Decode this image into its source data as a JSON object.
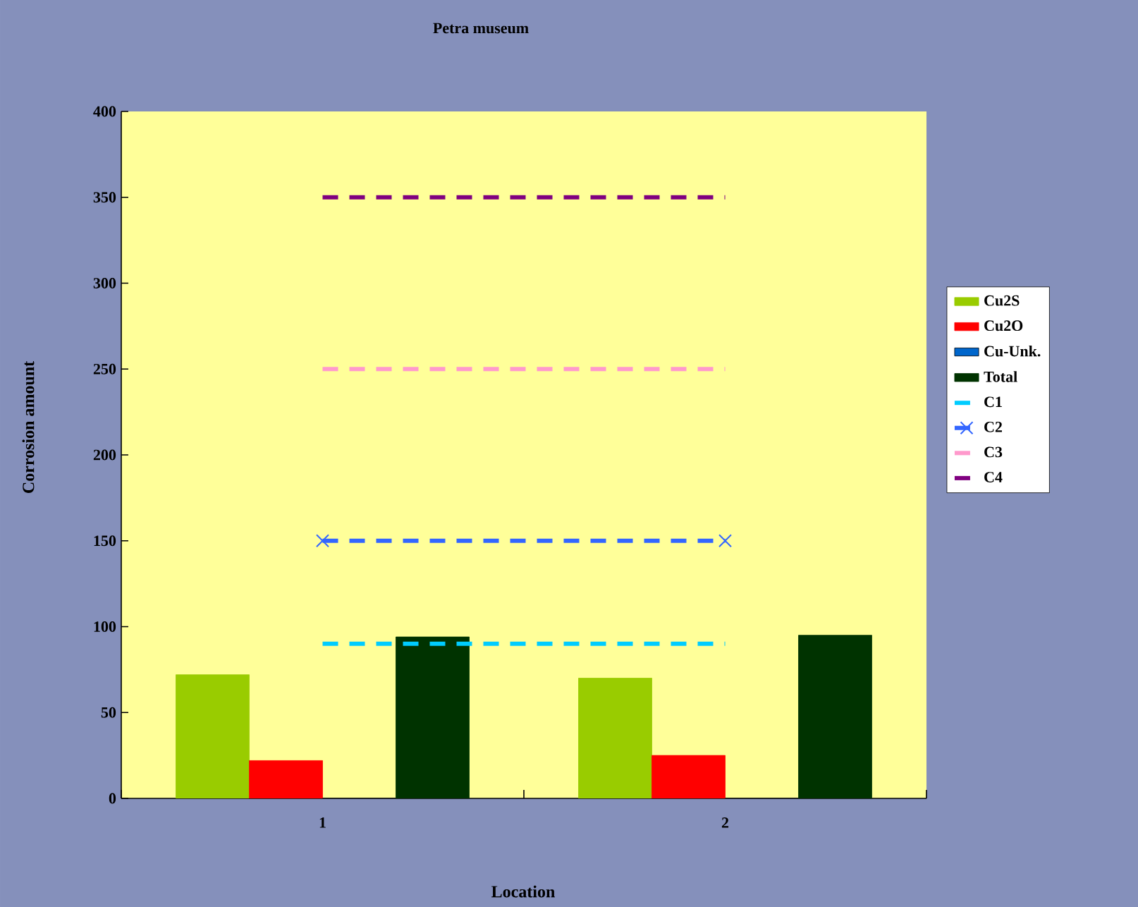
{
  "chart_data": {
    "type": "bar",
    "title": "Petra museum",
    "xlabel": "Location",
    "ylabel": "Corrosion amount",
    "categories": [
      "1",
      "2"
    ],
    "ylim": [
      0,
      400
    ],
    "yticks": [
      0,
      50,
      100,
      150,
      200,
      250,
      300,
      350,
      400
    ],
    "legend": "right",
    "series": [
      {
        "name": "Cu2S",
        "color": "#99cc00",
        "values": [
          72,
          70
        ]
      },
      {
        "name": "Cu2O",
        "color": "#ff0000",
        "values": [
          22,
          25
        ]
      },
      {
        "name": "Cu-Unk.",
        "color": "#0066cc",
        "values": [
          0,
          0
        ]
      },
      {
        "name": "Total",
        "color": "#003300",
        "values": [
          94,
          95
        ]
      },
      {
        "name": "C1",
        "type": "line",
        "color": "#00ccff",
        "values": [
          90,
          90
        ],
        "line_style": "dashed",
        "marker": "none"
      },
      {
        "name": "C2",
        "type": "line",
        "color": "#3366ff",
        "values": [
          150,
          150
        ],
        "line_style": "dashed",
        "marker": "cross"
      },
      {
        "name": "C3",
        "type": "line",
        "color": "#ff99cc",
        "values": [
          250,
          250
        ],
        "line_style": "dashed",
        "marker": "none"
      },
      {
        "name": "C4",
        "type": "line",
        "color": "#800080",
        "values": [
          350,
          350
        ],
        "line_style": "dashed",
        "marker": "none"
      }
    ]
  }
}
